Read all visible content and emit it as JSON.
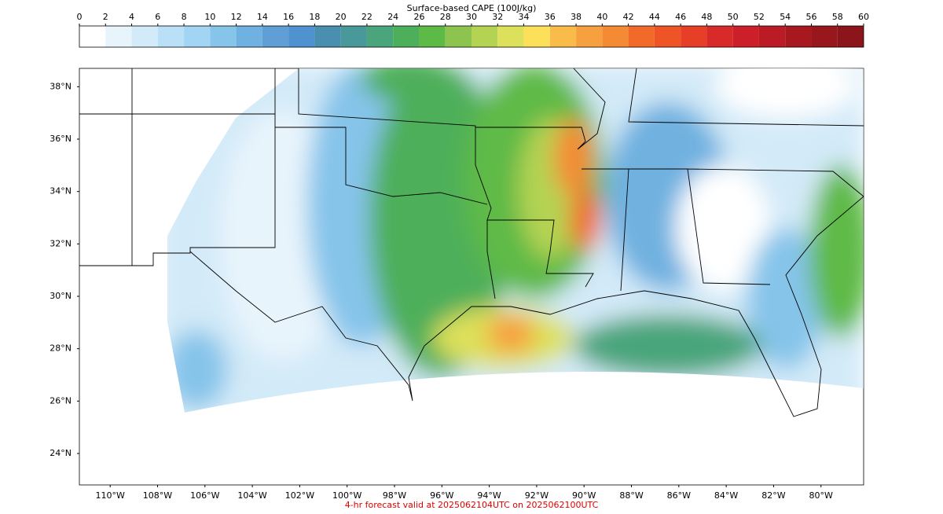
{
  "title": "Surface-based CAPE (100J/kg)",
  "colorbar": {
    "lim": [
      0,
      60
    ],
    "ticks": [
      0,
      2,
      4,
      6,
      8,
      10,
      12,
      14,
      16,
      18,
      20,
      22,
      24,
      26,
      28,
      30,
      32,
      34,
      36,
      38,
      40,
      42,
      44,
      46,
      48,
      50,
      52,
      54,
      56,
      58,
      60
    ],
    "colors": [
      "#ffffff",
      "#e8f4fc",
      "#d3eaf8",
      "#b9e0f6",
      "#a1d5f3",
      "#86c4ea",
      "#6fb1e0",
      "#5f9fd6",
      "#4f92cf",
      "#4a8fb0",
      "#49999a",
      "#4aa57c",
      "#4daf5a",
      "#5eba47",
      "#8cc44f",
      "#b4d352",
      "#dde05a",
      "#fde05a",
      "#f9bb4a",
      "#f7a040",
      "#f58a35",
      "#f26a2a",
      "#ef5427",
      "#e63e27",
      "#d92a2a",
      "#cc1f2a",
      "#bb1b25",
      "#a8191f",
      "#98171c",
      "#8b151a"
    ]
  },
  "lon_lim": [
    -111.3,
    -78.2
  ],
  "lat_lim": [
    22.8,
    38.7
  ],
  "lon_ticks": [
    {
      "value": -110,
      "label": "110°W"
    },
    {
      "value": -108,
      "label": "108°W"
    },
    {
      "value": -106,
      "label": "106°W"
    },
    {
      "value": -104,
      "label": "104°W"
    },
    {
      "value": -102,
      "label": "102°W"
    },
    {
      "value": -100,
      "label": "100°W"
    },
    {
      "value": -98,
      "label": "98°W"
    },
    {
      "value": -96,
      "label": "96°W"
    },
    {
      "value": -94,
      "label": "94°W"
    },
    {
      "value": -92,
      "label": "92°W"
    },
    {
      "value": -90,
      "label": "90°W"
    },
    {
      "value": -88,
      "label": "88°W"
    },
    {
      "value": -86,
      "label": "86°W"
    },
    {
      "value": -84,
      "label": "84°W"
    },
    {
      "value": -82,
      "label": "82°W"
    },
    {
      "value": -80,
      "label": "80°W"
    }
  ],
  "lat_ticks": [
    {
      "value": 38,
      "label": "38°N"
    },
    {
      "value": 36,
      "label": "36°N"
    },
    {
      "value": 34,
      "label": "34°N"
    },
    {
      "value": 32,
      "label": "32°N"
    },
    {
      "value": 30,
      "label": "30°N"
    },
    {
      "value": 28,
      "label": "28°N"
    },
    {
      "value": 26,
      "label": "26°N"
    },
    {
      "value": 24,
      "label": "24°N"
    }
  ],
  "footer": "4-hr forecast valid at 2025062104UTC on 2025062100UTC"
}
